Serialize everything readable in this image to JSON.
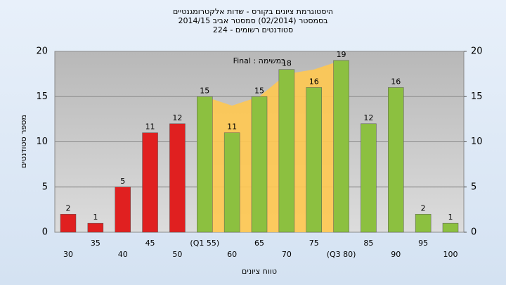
{
  "chart_data": {
    "type": "bar",
    "title": [
      "היסטוגרמת ציונים בקורס - שדות אלקטרומגנטיים",
      "בסמסטר  (02/2014)  סמסטר אביב 2014/15",
      "סטודנטים רשומים - 224"
    ],
    "annotation": "Final : במשימה",
    "x_label": "טווח ציונים",
    "y_label": "מספר סטודנטים",
    "categories": [
      "30",
      "35",
      "40",
      "45",
      "50",
      "(Q1 55)",
      "60",
      "65",
      "70",
      "75",
      "(Q3 80)",
      "85",
      "90",
      "95",
      "100"
    ],
    "values": [
      2,
      1,
      5,
      11,
      12,
      15,
      11,
      15,
      18,
      16,
      19,
      12,
      16,
      2,
      1
    ],
    "colors": [
      "#e02020",
      "#e02020",
      "#e02020",
      "#e02020",
      "#e02020",
      "#8cc040",
      "#8cc040",
      "#8cc040",
      "#8cc040",
      "#8cc040",
      "#8cc040",
      "#8cc040",
      "#8cc040",
      "#8cc040",
      "#8cc040"
    ],
    "area": {
      "color": "#ffc850",
      "values": [
        null,
        null,
        null,
        null,
        null,
        15,
        14,
        15,
        17.5,
        18,
        19,
        null,
        null,
        null,
        null
      ]
    },
    "ylim": [
      0,
      20
    ],
    "yticks": [
      0,
      5,
      10,
      15,
      20
    ],
    "y2lim": [
      0,
      20
    ],
    "y2ticks": [
      0,
      5,
      10,
      15,
      20
    ],
    "grid": true
  }
}
